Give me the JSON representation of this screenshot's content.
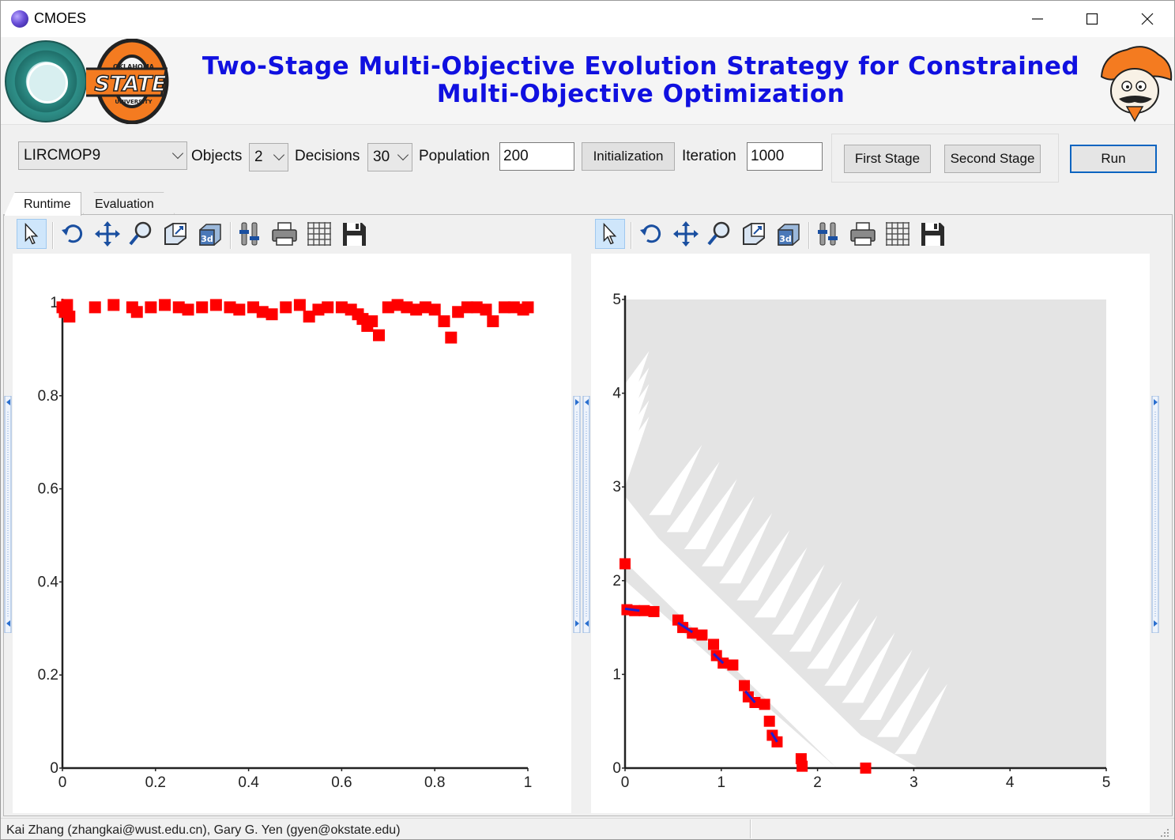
{
  "window": {
    "title": "CMOES",
    "controls": {
      "minimize": "—",
      "maximize": "☐",
      "close": "✕"
    }
  },
  "header": {
    "title_line1": "Two-Stage Multi-Objective Evolution Strategy for Constrained",
    "title_line2": "Multi-Objective Optimization",
    "logos": [
      "wust-logo",
      "oklahoma-state-logo",
      "pistol-pete-logo"
    ],
    "osu_logo_text": [
      "OKLAHOMA",
      "STATE",
      "UNIVERSITY"
    ]
  },
  "controls": {
    "problem": "LIRCMOP9",
    "objects_label": "Objects",
    "objects_value": "2",
    "decisions_label": "Decisions",
    "decisions_value": "30",
    "population_label": "Population",
    "population_value": "200",
    "initialization_button": "Initialization",
    "iteration_label": "Iteration",
    "iteration_value": "1000",
    "first_stage_button": "First Stage",
    "second_stage_button": "Second Stage",
    "run_button": "Run"
  },
  "tabs": [
    {
      "label": "Runtime",
      "active": true
    },
    {
      "label": "Evaluation",
      "active": false
    }
  ],
  "toolbar_icons": [
    "pointer-icon",
    "rotate-icon",
    "pan-icon",
    "zoom-icon",
    "zoom-box-icon",
    "3d-icon",
    "properties-icon",
    "print-icon",
    "grid-icon",
    "save-icon"
  ],
  "colors": {
    "title_blue": "#1010e0",
    "marker_red": "#ff0000",
    "front_blue": "#2020d0",
    "feasible_gray": "#e4e4e4",
    "run_border": "#0b64c0"
  },
  "chart_data": [
    {
      "type": "scatter",
      "title": "",
      "xlabel": "",
      "ylabel": "",
      "xlim": [
        0,
        1
      ],
      "ylim": [
        0,
        1
      ],
      "x_ticks": [
        "0",
        "0.2",
        "0.4",
        "0.6",
        "0.8",
        "1"
      ],
      "y_ticks": [
        "0",
        "0.2",
        "0.4",
        "0.6",
        "0.8",
        "1"
      ],
      "marker": "square",
      "series": [
        {
          "points": [
            [
              0.0,
              0.99
            ],
            [
              0.005,
              0.98
            ],
            [
              0.01,
              0.995
            ],
            [
              0.015,
              0.97
            ],
            [
              0.07,
              0.99
            ],
            [
              0.11,
              0.995
            ],
            [
              0.15,
              0.99
            ],
            [
              0.16,
              0.98
            ],
            [
              0.19,
              0.99
            ],
            [
              0.22,
              0.995
            ],
            [
              0.25,
              0.99
            ],
            [
              0.27,
              0.985
            ],
            [
              0.3,
              0.99
            ],
            [
              0.33,
              0.995
            ],
            [
              0.36,
              0.99
            ],
            [
              0.38,
              0.985
            ],
            [
              0.41,
              0.99
            ],
            [
              0.43,
              0.98
            ],
            [
              0.45,
              0.975
            ],
            [
              0.48,
              0.99
            ],
            [
              0.51,
              0.995
            ],
            [
              0.53,
              0.97
            ],
            [
              0.55,
              0.985
            ],
            [
              0.57,
              0.99
            ],
            [
              0.6,
              0.99
            ],
            [
              0.62,
              0.985
            ],
            [
              0.635,
              0.975
            ],
            [
              0.645,
              0.965
            ],
            [
              0.655,
              0.95
            ],
            [
              0.665,
              0.96
            ],
            [
              0.68,
              0.93
            ],
            [
              0.7,
              0.99
            ],
            [
              0.72,
              0.995
            ],
            [
              0.74,
              0.99
            ],
            [
              0.76,
              0.985
            ],
            [
              0.78,
              0.99
            ],
            [
              0.8,
              0.985
            ],
            [
              0.82,
              0.96
            ],
            [
              0.835,
              0.925
            ],
            [
              0.85,
              0.98
            ],
            [
              0.87,
              0.99
            ],
            [
              0.89,
              0.99
            ],
            [
              0.91,
              0.985
            ],
            [
              0.925,
              0.96
            ],
            [
              0.95,
              0.99
            ],
            [
              0.97,
              0.99
            ],
            [
              0.99,
              0.985
            ],
            [
              1.0,
              0.99
            ]
          ]
        }
      ]
    },
    {
      "type": "scatter",
      "title": "",
      "xlabel": "",
      "ylabel": "",
      "xlim": [
        0,
        5
      ],
      "ylim": [
        0,
        5
      ],
      "x_ticks": [
        "0",
        "1",
        "2",
        "3",
        "4",
        "5"
      ],
      "y_ticks": [
        "0",
        "1",
        "2",
        "3",
        "4",
        "5"
      ],
      "background": "feasible region (gray) with infeasible white bands",
      "series": [
        {
          "marker": "square",
          "points": [
            [
              0.0,
              2.18
            ],
            [
              0.02,
              1.69
            ],
            [
              0.1,
              1.68
            ],
            [
              0.2,
              1.68
            ],
            [
              0.3,
              1.67
            ],
            [
              0.55,
              1.58
            ],
            [
              0.6,
              1.5
            ],
            [
              0.7,
              1.44
            ],
            [
              0.8,
              1.42
            ],
            [
              0.92,
              1.32
            ],
            [
              0.95,
              1.2
            ],
            [
              1.02,
              1.12
            ],
            [
              1.12,
              1.1
            ],
            [
              1.24,
              0.88
            ],
            [
              1.28,
              0.76
            ],
            [
              1.35,
              0.7
            ],
            [
              1.45,
              0.68
            ],
            [
              1.5,
              0.5
            ],
            [
              1.53,
              0.35
            ],
            [
              1.58,
              0.28
            ],
            [
              1.83,
              0.1
            ],
            [
              1.84,
              0.02
            ],
            [
              2.5,
              0.0
            ]
          ]
        },
        {
          "marker": "line",
          "points": [
            [
              0.0,
              1.7
            ],
            [
              0.15,
              1.68
            ],
            [
              0.55,
              1.55
            ],
            [
              0.7,
              1.45
            ],
            [
              0.92,
              1.22
            ],
            [
              1.02,
              1.12
            ],
            [
              1.25,
              0.82
            ],
            [
              1.35,
              0.7
            ],
            [
              1.52,
              0.38
            ],
            [
              1.58,
              0.28
            ],
            [
              1.83,
              0.05
            ]
          ]
        }
      ]
    }
  ],
  "status": {
    "text": "Kai Zhang (zhangkai@wust.edu.cn),  Gary G. Yen (gyen@okstate.edu)"
  }
}
